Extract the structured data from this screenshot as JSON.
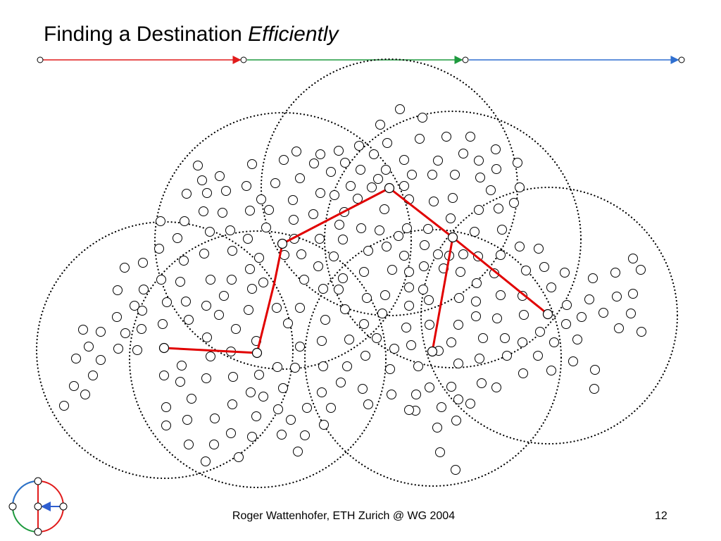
{
  "slide": {
    "title_plain": "Finding a Destination ",
    "title_emphasis": "Efficiently",
    "footer": "Roger Wattenhofer, ETH Zurich @ WG 2004",
    "page_number": "12"
  },
  "colors": {
    "progress_red": "#e11b1b",
    "progress_green": "#1e9a3e",
    "progress_blue": "#2f6fd0",
    "route": "#e10000",
    "node_stroke": "#000000"
  }
}
